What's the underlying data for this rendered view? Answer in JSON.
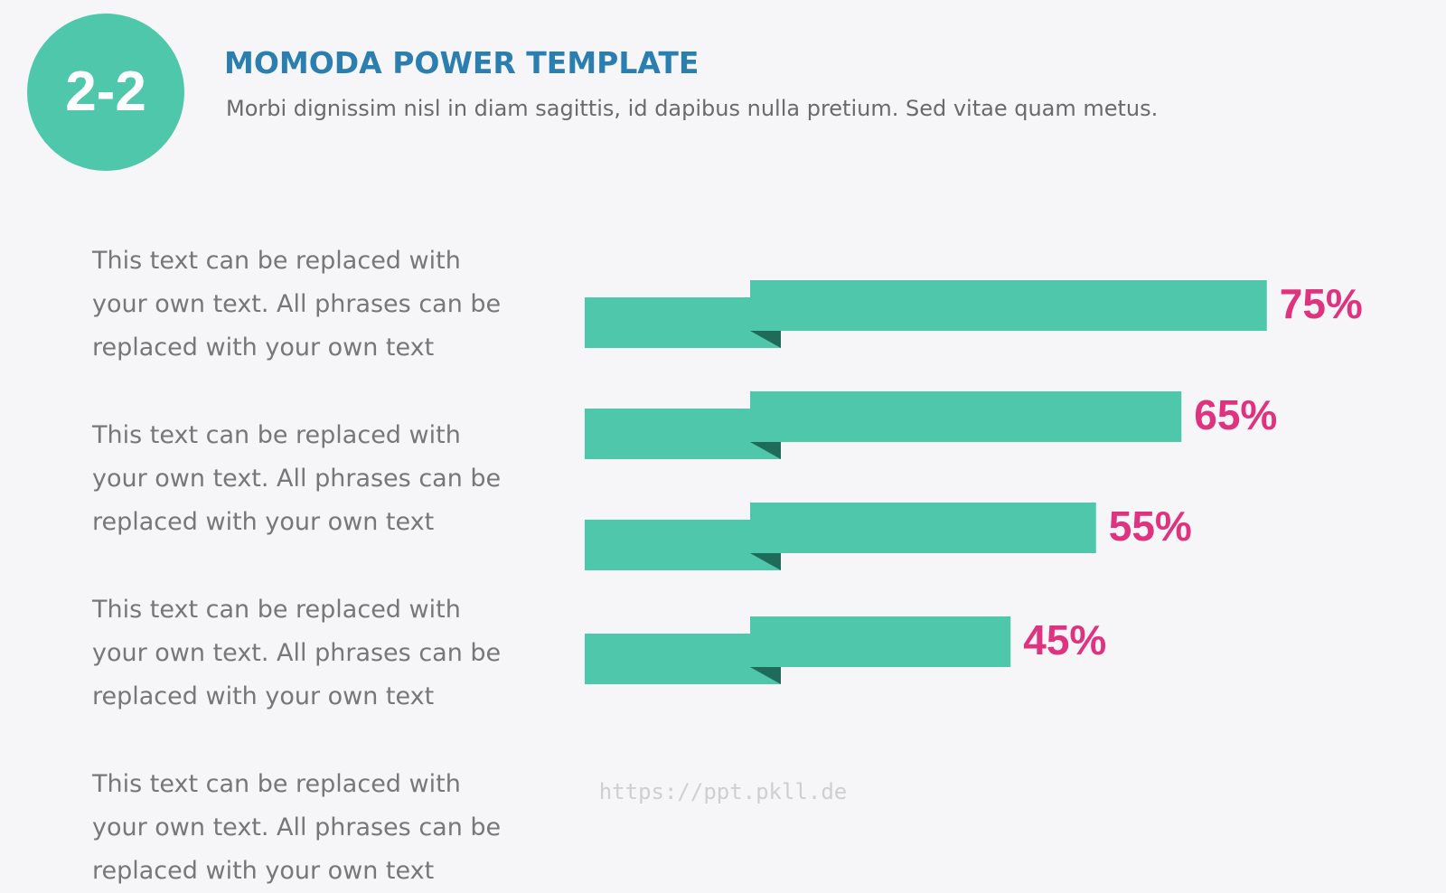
{
  "badge": "2-2",
  "chart_data": {
    "type": "ribbon-bar",
    "title": "MOMODA POWER TEMPLATE",
    "subtitle": "Morbi dignissim nisl in diam sagittis, id dapibus nulla pretium. Sed vitae quam metus.",
    "categories": [
      "This text can be replaced with your own text. All phrases can be replaced with your own text",
      "This text can be replaced with your own text. All phrases can be replaced with your own text",
      "This text can be replaced with your own text. All phrases can be replaced with your own text",
      "This text can be replaced with your own text. All phrases can be replaced with your own text"
    ],
    "values": [
      75,
      65,
      55,
      45
    ],
    "value_labels": [
      "75%",
      "65%",
      "55%",
      "45%"
    ],
    "color": "#4fc7aa",
    "fold_color": "#1f6b59",
    "label_color": "#e0337f"
  },
  "footer": "https://ppt.pkll.de"
}
